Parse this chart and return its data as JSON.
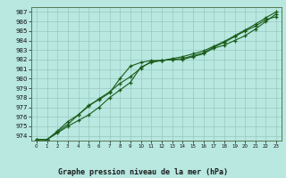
{
  "xlabel": "Graphe pression niveau de la mer (hPa)",
  "ylim": [
    973.5,
    987.5
  ],
  "xlim": [
    -0.5,
    23.5
  ],
  "yticks": [
    974,
    975,
    976,
    977,
    978,
    979,
    980,
    981,
    982,
    983,
    984,
    985,
    986,
    987
  ],
  "xticks": [
    0,
    1,
    2,
    3,
    4,
    5,
    6,
    7,
    8,
    9,
    10,
    11,
    12,
    13,
    14,
    15,
    16,
    17,
    18,
    19,
    20,
    21,
    22,
    23
  ],
  "bg_color": "#b8e8e0",
  "grid_color": "#98c8c0",
  "line_color": "#1a5c1a",
  "line1_x": [
    0,
    1,
    2,
    3,
    4,
    5,
    6,
    7,
    8,
    9,
    10,
    11,
    12,
    13,
    14,
    15,
    16,
    17,
    18,
    19,
    20,
    21,
    22,
    23
  ],
  "line1_y": [
    973.6,
    973.6,
    974.3,
    975.0,
    975.6,
    976.2,
    977.0,
    978.0,
    978.8,
    979.6,
    981.2,
    981.7,
    981.9,
    982.0,
    982.0,
    982.3,
    982.6,
    983.2,
    983.5,
    984.0,
    984.5,
    985.2,
    986.0,
    986.8
  ],
  "line2_x": [
    0,
    1,
    2,
    3,
    4,
    5,
    6,
    7,
    8,
    9,
    10,
    11,
    12,
    13,
    14,
    15,
    16,
    17,
    18,
    19,
    20,
    21,
    22,
    23
  ],
  "line2_y": [
    973.6,
    973.6,
    974.4,
    975.2,
    976.2,
    977.2,
    977.8,
    978.5,
    980.0,
    981.3,
    981.7,
    981.9,
    981.9,
    982.0,
    982.1,
    982.4,
    982.7,
    983.3,
    983.8,
    984.4,
    985.0,
    985.5,
    986.2,
    986.5
  ],
  "line3_x": [
    0,
    1,
    2,
    3,
    4,
    5,
    6,
    7,
    8,
    9,
    10,
    11,
    12,
    13,
    14,
    15,
    16,
    17,
    18,
    19,
    20,
    21,
    22,
    23
  ],
  "line3_y": [
    973.6,
    973.6,
    974.5,
    975.5,
    976.2,
    977.1,
    977.9,
    978.6,
    979.5,
    980.2,
    981.1,
    981.8,
    981.9,
    982.1,
    982.3,
    982.6,
    982.9,
    983.4,
    983.9,
    984.5,
    985.1,
    985.7,
    986.4,
    987.0
  ]
}
